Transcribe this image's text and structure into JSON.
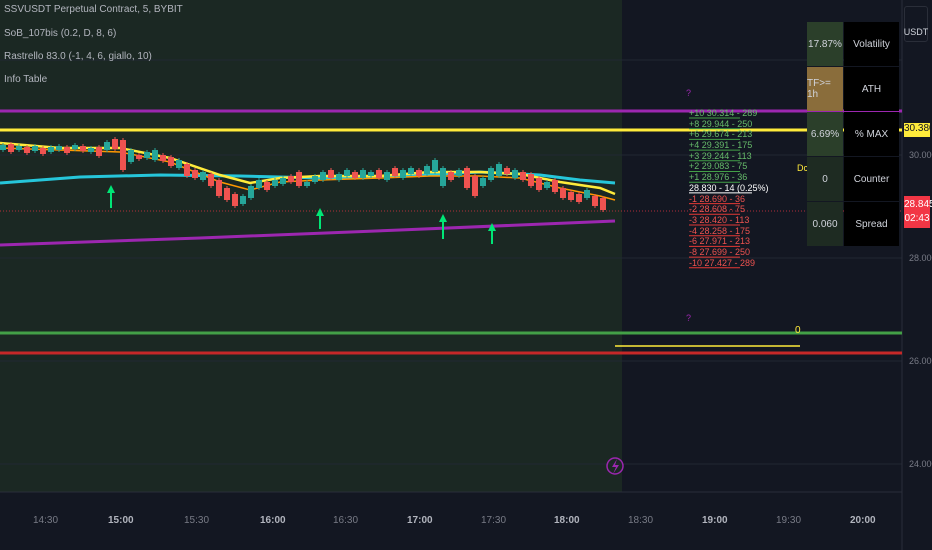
{
  "header": {
    "symbol_line": "SSVUSDT Perpetual Contract, 5, BYBIT",
    "ind1": "SoB_107bis (0.2, D, 8, 6)",
    "ind2": "Rastrello 83.0 (-1, 4, 6, giallo, 10)",
    "ind3": "Info Table"
  },
  "currency": "USDT",
  "price_axis": {
    "labels": [
      "30.000",
      "28.000",
      "26.000",
      "24.000"
    ],
    "tag_yellow": "30.380",
    "tag_red_price": "28.845",
    "tag_red_countdown": "02:43",
    "colors": {
      "yellow": "#ffeb3b",
      "red": "#f23645"
    }
  },
  "time_axis": {
    "labels": [
      "14:30",
      "15:00",
      "15:30",
      "16:00",
      "16:30",
      "17:00",
      "17:30",
      "18:00",
      "18:30",
      "19:00",
      "19:30",
      "20:00"
    ],
    "bold": [
      "15:00",
      "16:00",
      "17:00",
      "18:00",
      "19:00",
      "20:00"
    ]
  },
  "info_table": [
    {
      "value": "17.87%",
      "label": "Volatility",
      "color": "#2b3f2a"
    },
    {
      "value": "TF>= 1h",
      "label": "ATH",
      "color": "#8a6d3b"
    },
    {
      "value": "6.69%",
      "label": "% MAX",
      "color": "#2b3f2a"
    },
    {
      "value": "0",
      "label": "Counter",
      "color": "#1e2b22"
    },
    {
      "value": "0.060",
      "label": "Spread",
      "color": "#1e2b22"
    }
  ],
  "ladder": {
    "rows": [
      "+10 30.314 - 289",
      "+8 29.944 - 250",
      "+6 29.674 - 213",
      "+4 29.391 - 175",
      "+3 29.244 - 113",
      "+2 29.083 - 75",
      "+1 28.976 - 36",
      "28.830 - 14 (0.25%)",
      "-1 28.690 - 36",
      "-2 28.608 - 75",
      "-3 28.420 - 113",
      "-4 28.258 - 175",
      "-6 27.971 - 213",
      "-8 27.699 - 250",
      "-10 27.427 - 289"
    ],
    "marker_dc": "Dc",
    "marker_q": "?",
    "marker_zero": "0"
  },
  "lightning_icon": "lightning-icon",
  "accent": {
    "green_candle": "#26a69a",
    "red_candle": "#ef5350",
    "purple": "#9c27b0",
    "cyan": "#26c6da",
    "green_line": "#43a047",
    "dark_red_line": "#b71c1c"
  }
}
